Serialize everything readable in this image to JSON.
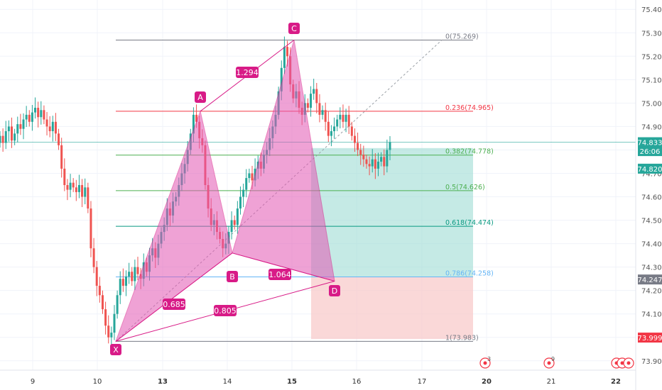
{
  "colors": {
    "up": "#26a69a",
    "down": "#ef5350",
    "pattern": "#d81b87",
    "pattern_fill": "#e357b4",
    "target_zone": "#9fdcd3",
    "stop_zone": "#f8c8c8",
    "price_line": "#26a69a",
    "axis_text": "#555555"
  },
  "chart_data": {
    "type": "candlestick",
    "ylim": [
      73.86,
      75.44
    ],
    "y_ticks": [
      "75.400",
      "75.300",
      "75.200",
      "75.100",
      "75.000",
      "74.900",
      "74.800",
      "74.700",
      "74.600",
      "74.500",
      "74.400",
      "74.300",
      "74.200",
      "74.100",
      "74.000",
      "73.900"
    ],
    "x_ticks": [
      {
        "label": "9",
        "day": 9,
        "bold": false
      },
      {
        "label": "10",
        "day": 10,
        "bold": false
      },
      {
        "label": "13",
        "day": 13,
        "bold": true
      },
      {
        "label": "14",
        "day": 14,
        "bold": false
      },
      {
        "label": "15",
        "day": 15,
        "bold": true
      },
      {
        "label": "16",
        "day": 16,
        "bold": false
      },
      {
        "label": "17",
        "day": 17,
        "bold": false
      },
      {
        "label": "20",
        "day": 20,
        "bold": true
      },
      {
        "label": "21",
        "day": 21,
        "bold": false
      },
      {
        "label": "22",
        "day": 22,
        "bold": true
      }
    ],
    "candles_close": [
      74.86,
      74.83,
      74.88,
      74.9,
      74.84,
      74.87,
      74.91,
      74.89,
      74.93,
      74.95,
      74.92,
      74.96,
      74.98,
      74.94,
      74.97,
      74.93,
      74.9,
      74.88,
      74.92,
      74.87,
      74.82,
      74.72,
      74.65,
      74.63,
      74.66,
      74.64,
      74.62,
      74.65,
      74.6,
      74.64,
      74.55,
      74.38,
      74.3,
      74.22,
      74.18,
      74.12,
      74.05,
      74.0,
      74.02,
      74.1,
      74.18,
      74.25,
      74.22,
      74.26,
      74.28,
      74.24,
      74.3,
      74.27,
      74.25,
      74.32,
      74.28,
      74.35,
      74.38,
      74.34,
      74.4,
      74.45,
      74.48,
      74.55,
      74.52,
      74.58,
      74.6,
      74.65,
      74.7,
      74.74,
      74.8,
      74.87,
      74.95,
      74.92,
      74.85,
      74.82,
      74.65,
      74.55,
      74.48,
      74.5,
      74.45,
      74.42,
      74.38,
      74.4,
      74.45,
      74.5,
      74.48,
      74.55,
      74.6,
      74.63,
      74.68,
      74.7,
      74.67,
      74.72,
      74.75,
      74.72,
      74.78,
      74.8,
      74.85,
      74.9,
      74.95,
      75.05,
      75.15,
      75.24,
      75.2,
      75.08,
      75.02,
      75.05,
      74.98,
      74.95,
      75.0,
      74.98,
      75.04,
      75.06,
      75.0,
      74.95,
      74.97,
      74.92,
      74.86,
      74.88,
      74.9,
      74.93,
      74.95,
      74.92,
      74.95,
      74.9,
      74.86,
      74.83,
      74.8,
      74.78,
      74.76,
      74.74,
      74.73,
      74.76,
      74.72,
      74.75,
      74.77,
      74.73,
      74.8,
      74.833
    ],
    "candle_x_range": [
      0,
      549
    ],
    "fib_levels": [
      {
        "label": "0(75.269)",
        "price": 75.269,
        "color": "#787b86"
      },
      {
        "label": "0.236(74.965)",
        "price": 74.965,
        "color": "#f23645"
      },
      {
        "label": "0.382(74.778)",
        "price": 74.778,
        "color": "#4caf50"
      },
      {
        "label": "0.5(74.626)",
        "price": 74.626,
        "color": "#4caf50"
      },
      {
        "label": "0.618(74.474)",
        "price": 74.474,
        "color": "#089981"
      },
      {
        "label": "0.786(74.258)",
        "price": 74.258,
        "color": "#64b5f6"
      },
      {
        "label": "1(73.983)",
        "price": 73.983,
        "color": "#787b86"
      }
    ],
    "pattern_points": [
      {
        "label": "X",
        "price": 73.983
      },
      {
        "label": "A",
        "price": 74.965
      },
      {
        "label": "B",
        "price": 74.36
      },
      {
        "label": "C",
        "price": 75.269
      },
      {
        "label": "D",
        "price": 74.24
      }
    ],
    "ratios": [
      {
        "label": "1.294"
      },
      {
        "label": "0.685"
      },
      {
        "label": "1.064"
      },
      {
        "label": "0.805"
      }
    ],
    "price_tags": [
      {
        "label": "74.833",
        "price": 74.833,
        "color": "#26a69a"
      },
      {
        "label": "26:06",
        "price": 74.795,
        "color": "#26a69a"
      },
      {
        "label": "74.820",
        "price": 74.72,
        "color": "#26a69a"
      },
      {
        "label": "74.247",
        "price": 74.247,
        "color": "#787b86"
      },
      {
        "label": "73.999",
        "price": 73.999,
        "color": "#f23645"
      }
    ],
    "events": [
      {
        "label": "3"
      },
      {
        "label": "9"
      },
      {
        "label": ""
      },
      {
        "label": ""
      },
      {
        "label": ""
      }
    ]
  }
}
